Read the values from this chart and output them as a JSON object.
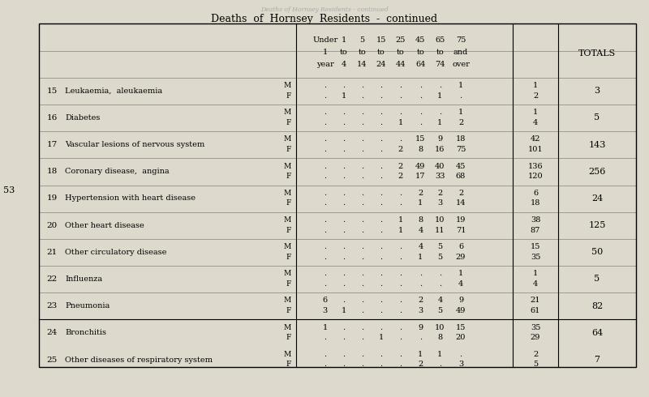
{
  "title": "Deaths  of  Hornsey  Residents  -  continued",
  "bg_color": "#ddd9cc",
  "page_number": "53",
  "col_headers_line1": [
    "Under",
    "1",
    "5",
    "15",
    "25",
    "45",
    "65",
    "75",
    ""
  ],
  "col_headers_line2": [
    "1",
    "to",
    "to",
    "to",
    "to",
    "to",
    "to",
    "and",
    "TOTALS"
  ],
  "col_headers_line3": [
    "year",
    "4",
    "14",
    "24",
    "44",
    "64",
    "74",
    "over",
    ""
  ],
  "rows": [
    {
      "num": "15",
      "label": "Leukaemia,  aleukaemia",
      "M": [
        ".",
        ".",
        ".",
        ".",
        ".",
        ".",
        ".",
        "1",
        "1"
      ],
      "F": [
        ".",
        "1",
        ".",
        ".",
        ".",
        ".",
        "1",
        ".",
        "2"
      ],
      "total": "3"
    },
    {
      "num": "16",
      "label": "Diabetes",
      "M": [
        ".",
        ".",
        ".",
        ".",
        ".",
        ".",
        ".",
        "1",
        "1"
      ],
      "F": [
        ".",
        ".",
        ".",
        ".",
        "1",
        ".",
        "1",
        "2",
        "4"
      ],
      "total": "5"
    },
    {
      "num": "17",
      "label": "Vascular lesions of nervous system",
      "M": [
        ".",
        ".",
        ".",
        ".",
        ".",
        "15",
        "9",
        "18",
        "42"
      ],
      "F": [
        ".",
        ".",
        ".",
        ".",
        "2",
        "8",
        "16",
        "75",
        "101"
      ],
      "total": "143"
    },
    {
      "num": "18",
      "label": "Coronary disease,  angina",
      "M": [
        ".",
        ".",
        ".",
        ".",
        "2",
        "49",
        "40",
        "45",
        "136"
      ],
      "F": [
        ".",
        ".",
        ".",
        ".",
        "2",
        "17",
        "33",
        "68",
        "120"
      ],
      "total": "256"
    },
    {
      "num": "19",
      "label": "Hypertension with heart disease",
      "M": [
        ".",
        ".",
        ".",
        ".",
        ".",
        "2",
        "2",
        "2",
        "6"
      ],
      "F": [
        ".",
        ".",
        ".",
        ".",
        ".",
        "1",
        "3",
        "14",
        "18"
      ],
      "total": "24"
    },
    {
      "num": "20",
      "label": "Other heart disease",
      "M": [
        ".",
        ".",
        ".",
        ".",
        "1",
        "8",
        "10",
        "19",
        "38"
      ],
      "F": [
        ".",
        ".",
        ".",
        ".",
        "1",
        "4",
        "11",
        "71",
        "87"
      ],
      "total": "125"
    },
    {
      "num": "21",
      "label": "Other circulatory disease",
      "M": [
        ".",
        ".",
        ".",
        ".",
        ".",
        "4",
        "5",
        "6",
        "15"
      ],
      "F": [
        ".",
        ".",
        ".",
        ".",
        ".",
        "1",
        "5",
        "29",
        "35"
      ],
      "total": "50"
    },
    {
      "num": "22",
      "label": "Influenza",
      "M": [
        ".",
        ".",
        ".",
        ".",
        ".",
        ".",
        ".",
        "1",
        "1"
      ],
      "F": [
        ".",
        ".",
        ".",
        ".",
        ".",
        ".",
        ".",
        "4",
        "4"
      ],
      "total": "5"
    },
    {
      "num": "23",
      "label": "Pneumonia",
      "M": [
        "6",
        ".",
        ".",
        ".",
        ".",
        "2",
        "4",
        "9",
        "21"
      ],
      "F": [
        "3",
        "1",
        ".",
        ".",
        ".",
        "3",
        "5",
        "49",
        "61"
      ],
      "total": "82"
    },
    {
      "num": "24",
      "label": "Bronchitis",
      "M": [
        "1",
        ".",
        ".",
        ".",
        ".",
        "9",
        "10",
        "15",
        "35"
      ],
      "F": [
        ".",
        ".",
        ".",
        "1",
        ".",
        ".",
        "8",
        "20",
        "29"
      ],
      "total": "64"
    },
    {
      "num": "25",
      "label": "Other diseases of respiratory system",
      "M": [
        ".",
        ".",
        ".",
        ".",
        ".",
        "1",
        "1",
        ".",
        "2"
      ],
      "F": [
        ".",
        ".",
        ".",
        ".",
        ".",
        "2",
        ".",
        "3",
        "5"
      ],
      "total": "7"
    }
  ]
}
